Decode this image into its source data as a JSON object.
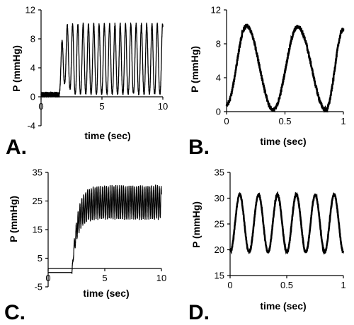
{
  "chart_data": [
    {
      "id": "A",
      "panel_label": "A.",
      "type": "line",
      "xlabel": "time (sec)",
      "ylabel": "P (mmHg)",
      "xlim": [
        0,
        10
      ],
      "ylim": [
        -4,
        12
      ],
      "xticks": [
        0,
        5,
        10
      ],
      "yticks": [
        -4,
        0,
        4,
        8,
        12
      ],
      "grid": false,
      "series": [
        {
          "values_description_source": "pressure trace",
          "baseline": 0.3,
          "onset": 1.5,
          "settle": 2.5,
          "peak": 10,
          "trough": 0.5,
          "frequency_hz": 2.3,
          "duration": 10,
          "noise": 0.5
        }
      ]
    },
    {
      "id": "B",
      "panel_label": "B.",
      "type": "line",
      "xlabel": "time (sec)",
      "ylabel": "P (mmHg)",
      "xlim": [
        0,
        1
      ],
      "ylim": [
        0,
        12
      ],
      "xticks": [
        0,
        0.5,
        1
      ],
      "yticks": [
        0,
        4,
        8,
        12
      ],
      "grid": false,
      "series": [
        {
          "peaks": [
            [
              0.17,
              10.1
            ],
            [
              0.61,
              10.0
            ]
          ],
          "troughs": [
            [
              0.0,
              0.8
            ],
            [
              0.4,
              0.2
            ],
            [
              0.85,
              0.2
            ]
          ],
          "end": [
            1.0,
            9.7
          ],
          "noise": 0.25
        }
      ]
    },
    {
      "id": "C",
      "panel_label": "C.",
      "type": "line",
      "xlabel": "time (sec)",
      "ylabel": "P (mmHg)",
      "xlim": [
        0,
        10
      ],
      "ylim": [
        -5,
        35
      ],
      "xticks": [
        0,
        5,
        10
      ],
      "yticks": [
        -5,
        5,
        15,
        25,
        35
      ],
      "grid": false,
      "series": [
        {
          "baseline": 0,
          "onset": 2.1,
          "upper_plateau": 30,
          "lower_plateau": 19,
          "frequency_hz": 6,
          "duration": 10
        }
      ]
    },
    {
      "id": "D",
      "panel_label": "D.",
      "type": "line",
      "xlabel": "time (sec)",
      "ylabel": "P (mmHg)",
      "xlim": [
        0,
        1
      ],
      "ylim": [
        15,
        35
      ],
      "xticks": [
        0,
        0.5,
        1
      ],
      "yticks": [
        15,
        20,
        25,
        30,
        35
      ],
      "grid": false,
      "series": [
        {
          "start": 20,
          "high": 30.7,
          "low": 19.5,
          "frequency_hz": 6,
          "phase_peak": 0.085,
          "noise": 0.2
        }
      ]
    }
  ]
}
